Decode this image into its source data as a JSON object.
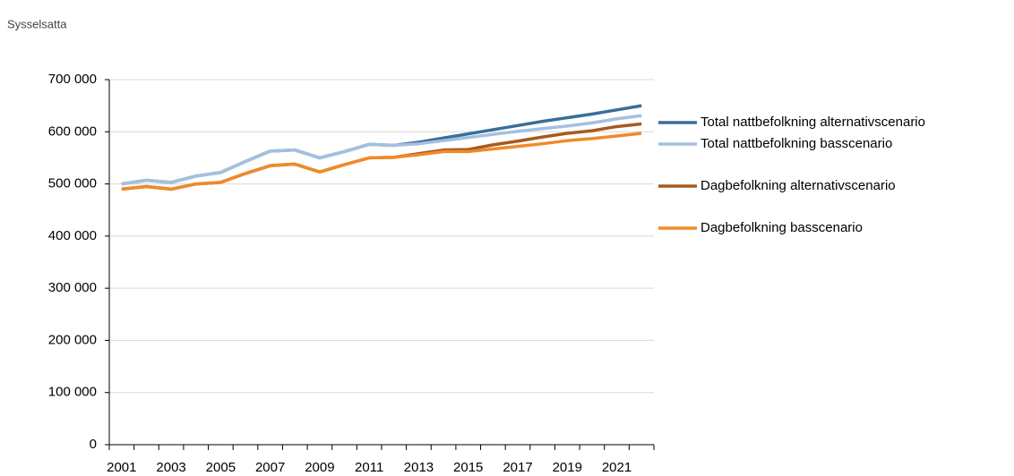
{
  "chart_data": {
    "type": "line",
    "title": "Sysselsatta",
    "categories": [
      "2001",
      null,
      "2003",
      null,
      "2005",
      null,
      "2007",
      null,
      "2009",
      null,
      "2011",
      null,
      "2013",
      null,
      "2015",
      null,
      "2017",
      null,
      "2019",
      null,
      "2021",
      null
    ],
    "series": [
      {
        "name": "Total nattbefolkning alternativscenario",
        "color": "#3a6e9a",
        "values": [
          500000,
          507000,
          503000,
          515000,
          522000,
          543000,
          563000,
          565000,
          550000,
          562000,
          576000,
          574000,
          580000,
          588000,
          596000,
          604000,
          612000,
          620000,
          627000,
          634000,
          642000,
          650000
        ]
      },
      {
        "name": "Total nattbefolkning basscenario",
        "color": "#a3c0e0",
        "values": [
          500000,
          507000,
          503000,
          515000,
          522000,
          543000,
          563000,
          565000,
          550000,
          562000,
          576000,
          574000,
          577000,
          583000,
          589000,
          595000,
          601000,
          606000,
          611000,
          617000,
          625000,
          631000
        ]
      },
      {
        "name": "Dagbefolkning alternativscenario",
        "color": "#a85a1c",
        "values": [
          490000,
          495000,
          490000,
          500000,
          503000,
          520000,
          535000,
          538000,
          523000,
          537000,
          550000,
          551000,
          558000,
          565000,
          566000,
          575000,
          582000,
          590000,
          597000,
          602000,
          610000,
          615000
        ]
      },
      {
        "name": "Dagbefolkning basscenario",
        "color": "#f08a2a",
        "values": [
          490000,
          495000,
          490000,
          500000,
          503000,
          520000,
          535000,
          538000,
          523000,
          537000,
          550000,
          551000,
          556000,
          562000,
          562000,
          567000,
          572000,
          577000,
          583000,
          587000,
          592000,
          597000
        ]
      }
    ],
    "ylim": [
      0,
      700000
    ],
    "yticks": [
      0,
      {
        "value": 100000,
        "label": "100 000"
      },
      {
        "value": 200000,
        "label": "200 000"
      },
      {
        "value": 300000,
        "label": "300 000"
      },
      {
        "value": 400000,
        "label": "400 000"
      },
      {
        "value": 500000,
        "label": "500 000"
      },
      {
        "value": 600000,
        "label": "600 000"
      },
      {
        "value": 700000,
        "label": "700 000"
      }
    ],
    "grid": true,
    "legend": "right"
  }
}
